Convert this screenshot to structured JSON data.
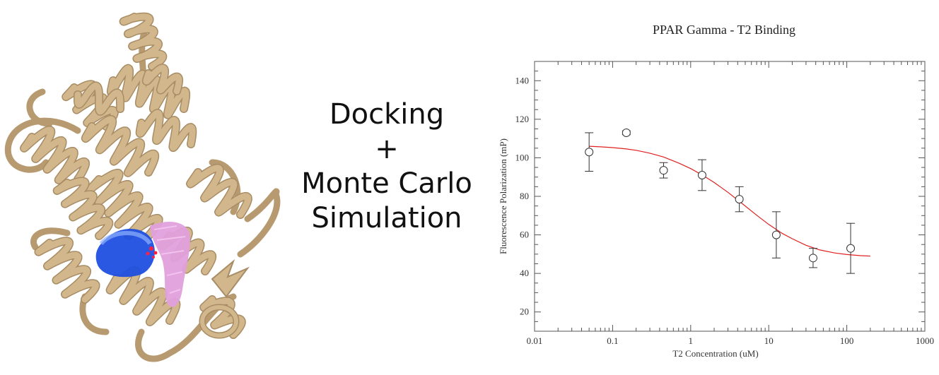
{
  "center_text": {
    "line1": "Docking",
    "line2": "+",
    "line3": "Monte Carlo",
    "line4": "Simulation"
  },
  "colors": {
    "protein": "#d2b68c",
    "protein_shadow": "#a88c64",
    "ligand_blue": "#1f4fe0",
    "ligand_pink": "#e0a0dc",
    "ligand_red": "#ff2040",
    "fit_curve": "#e02020",
    "points": "#333333"
  },
  "chart_data": {
    "type": "scatter",
    "title": "PPAR Gamma - T2 Binding",
    "xlabel": "T2 Concentration (uM)",
    "ylabel": "Fluorescence Polarization (mP)",
    "x_scale": "log",
    "xlim": [
      0.01,
      1000
    ],
    "ylim": [
      10,
      150
    ],
    "x_ticks": [
      0.01,
      0.1,
      1,
      10,
      100,
      1000
    ],
    "x_tick_labels": [
      "0.01",
      "0.1",
      "1",
      "10",
      "100",
      "1000"
    ],
    "y_ticks": [
      20,
      40,
      60,
      80,
      100,
      120,
      140
    ],
    "y_tick_labels": [
      "20",
      "40",
      "60",
      "80",
      "100",
      "120",
      "140"
    ],
    "grid": false,
    "series": [
      {
        "kind": "points",
        "marker": "open-circle",
        "x": [
          0.05,
          0.15,
          0.45,
          1.4,
          4.2,
          12.5,
          37,
          112
        ],
        "y": [
          103,
          113,
          93.5,
          91,
          78.5,
          60,
          48,
          53
        ],
        "err": [
          10,
          1,
          4,
          8,
          6.5,
          12,
          5,
          13
        ]
      },
      {
        "kind": "fit-line",
        "x": [
          0.05,
          0.07,
          0.1,
          0.15,
          0.2,
          0.3,
          0.45,
          0.7,
          1,
          1.5,
          2,
          3,
          4.5,
          7,
          10,
          15,
          20,
          30,
          45,
          70,
          100,
          150,
          200
        ],
        "y": [
          106,
          105.7,
          105.3,
          104.6,
          103.9,
          102.4,
          100.4,
          97.3,
          94.4,
          90.4,
          87.2,
          82.1,
          76.5,
          70.2,
          65.4,
          60.7,
          58.0,
          54.6,
          52.2,
          50.6,
          49.8,
          49.2,
          49.0
        ]
      }
    ]
  }
}
